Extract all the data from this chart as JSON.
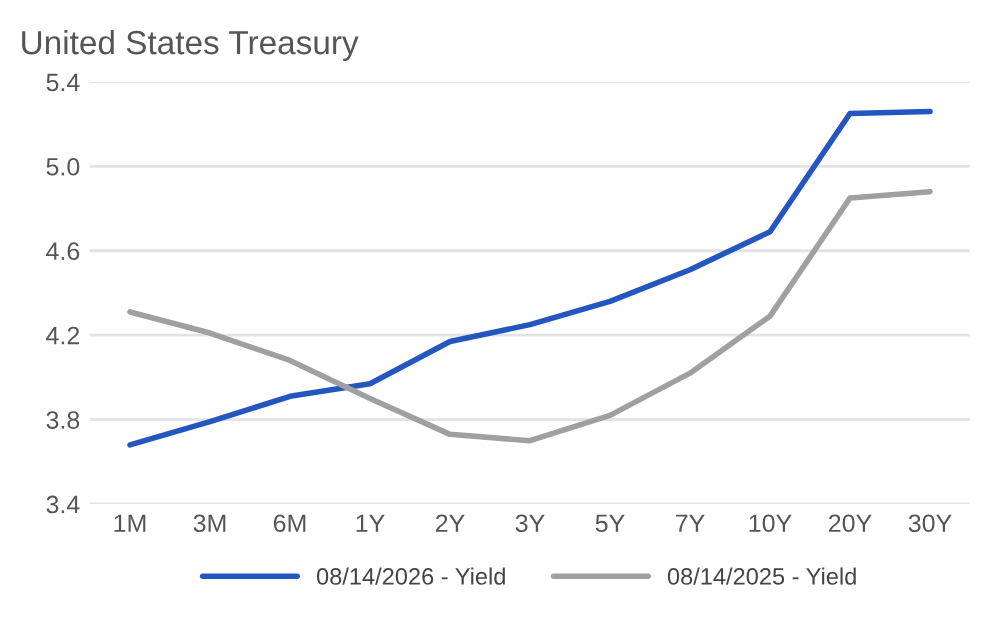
{
  "chart_data": {
    "type": "line",
    "title": "United States Treasury",
    "categories": [
      "1M",
      "3M",
      "6M",
      "1Y",
      "2Y",
      "3Y",
      "5Y",
      "7Y",
      "10Y",
      "20Y",
      "30Y"
    ],
    "series": [
      {
        "name": "08/14/2026 - Yield",
        "color": "#2456c0",
        "values": [
          3.68,
          3.79,
          3.91,
          3.97,
          4.17,
          4.25,
          4.36,
          4.51,
          4.69,
          5.25,
          5.26
        ]
      },
      {
        "name": "08/14/2025 - Yield",
        "color": "#a0a0a0",
        "values": [
          4.31,
          4.21,
          4.08,
          3.9,
          3.73,
          3.7,
          3.82,
          4.02,
          4.29,
          4.85,
          4.88
        ]
      }
    ],
    "ylim": [
      3.4,
      5.4
    ],
    "yticks": [
      3.4,
      3.8,
      4.2,
      4.6,
      {
        "value": 5,
        "label": "5.0"
      },
      5.4
    ],
    "grid": "y",
    "legend": "bottom"
  }
}
